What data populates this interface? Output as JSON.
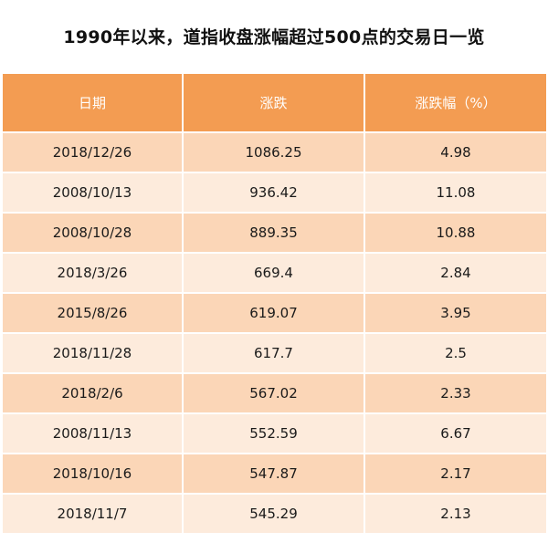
{
  "title": "1990年以来，道指收盘涨幅超过500点的交易日一览",
  "table": {
    "headers": [
      "日期",
      "涨跌",
      "涨跌幅（%）"
    ],
    "rows": [
      [
        "2018/12/26",
        "1086.25",
        "4.98"
      ],
      [
        "2008/10/13",
        "936.42",
        "11.08"
      ],
      [
        "2008/10/28",
        "889.35",
        "10.88"
      ],
      [
        "2018/3/26",
        "669.4",
        "2.84"
      ],
      [
        "2015/8/26",
        "619.07",
        "3.95"
      ],
      [
        "2018/11/28",
        "617.7",
        "2.5"
      ],
      [
        "2018/2/6",
        "567.02",
        "2.33"
      ],
      [
        "2008/11/13",
        "552.59",
        "6.67"
      ],
      [
        "2018/10/16",
        "547.87",
        "2.17"
      ],
      [
        "2018/11/7",
        "545.29",
        "2.13"
      ]
    ]
  },
  "colors": {
    "header_bg": "#f39c52",
    "row_dark": "#fbd6b7",
    "row_light": "#fdebdc"
  }
}
